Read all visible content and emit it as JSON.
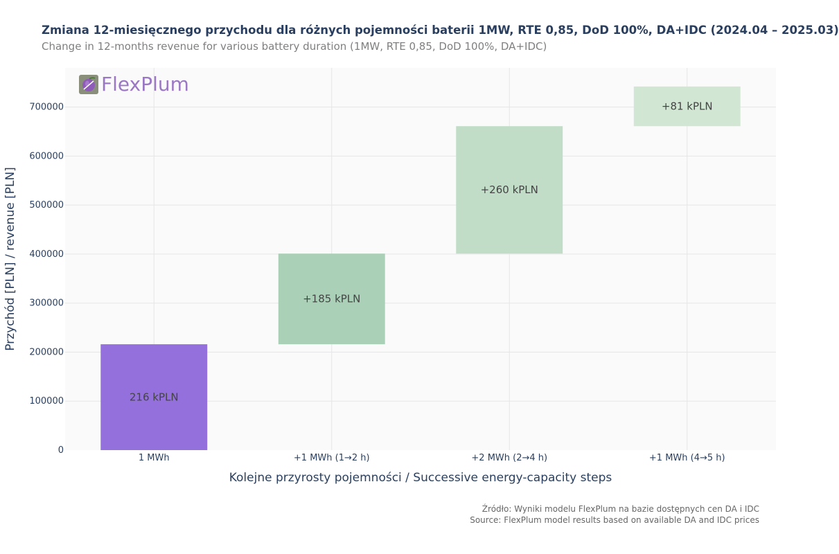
{
  "chart_data": {
    "type": "waterfall",
    "title": "Zmiana 12-miesięcznego przychodu dla różnych pojemności baterii 1MW, RTE 0,85, DoD 100%, DA+IDC (2024.04 – 2025.03)",
    "subtitle": "Change in 12-months revenue for various battery duration (1MW, RTE 0,85, DoD 100%, DA+IDC)",
    "xlabel": "Kolejne przyrosty pojemności / Successive energy-capacity steps",
    "ylabel": "Przychód [PLN] / revenue [PLN]",
    "ylim": [
      0,
      780000
    ],
    "yticks": [
      0,
      100000,
      200000,
      300000,
      400000,
      500000,
      600000,
      700000
    ],
    "ytick_labels": [
      "0",
      "100000",
      "200000",
      "300000",
      "400000",
      "500000",
      "600000",
      "700000"
    ],
    "grid": true,
    "categories": [
      "1 MWh",
      "+1 MWh (1→2 h)",
      "+2 MWh (2→4 h)",
      "+1 MWh (4→5 h)"
    ],
    "bars": [
      {
        "base": 0,
        "value": 216000,
        "label": "216 kPLN",
        "color": "#9370db"
      },
      {
        "base": 216000,
        "value": 185000,
        "label": "+185 kPLN",
        "color": "#abd0b8"
      },
      {
        "base": 401000,
        "value": 260000,
        "label": "+260 kPLN",
        "color": "#c1ddc7"
      },
      {
        "base": 661000,
        "value": 81000,
        "label": "+81 kPLN",
        "color": "#d1e7d3"
      }
    ]
  },
  "logo": {
    "text": "FlexPlum"
  },
  "source": {
    "line1": "Źródło: Wyniki modelu FlexPlum na bazie dostępnych cen DA i IDC",
    "line2": "Source: FlexPlum model results based on available DA and IDC prices"
  },
  "colors": {
    "plot_bg": "#fafafa",
    "grid": "#e6e6e6",
    "axis_text": "#2a3f5f"
  }
}
